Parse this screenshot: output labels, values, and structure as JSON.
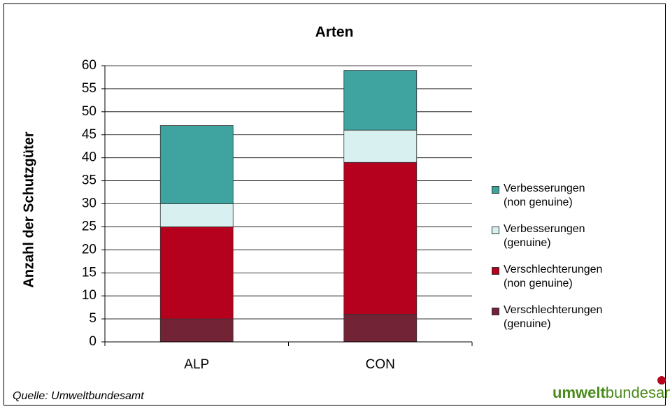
{
  "chart_data": {
    "type": "stacked_bar",
    "title": "Arten",
    "y_label": "Anzahl der Schutzgüter",
    "categories": [
      "ALP",
      "CON"
    ],
    "series": [
      {
        "name": "Verschlechterungen (genuine)",
        "color": "#722436",
        "values": [
          5,
          6
        ]
      },
      {
        "name": "Verschlechterungen (non genuine)",
        "color": "#b5001e",
        "values": [
          20,
          33
        ]
      },
      {
        "name": "Verbesserungen (genuine)",
        "color": "#d9f0f0",
        "values": [
          5,
          7
        ]
      },
      {
        "name": "Verbesserungen (non genuine)",
        "color": "#3fa39f",
        "values": [
          17,
          13
        ]
      }
    ],
    "ylim": [
      0,
      60
    ],
    "yticks": [
      0,
      5,
      10,
      15,
      20,
      25,
      30,
      35,
      40,
      45,
      50,
      55,
      60
    ],
    "grid": true,
    "legend": "right"
  },
  "source": "Quelle: Umweltbundesamt",
  "logo": {
    "bold": "umwelt",
    "regular": "bundesamt"
  }
}
